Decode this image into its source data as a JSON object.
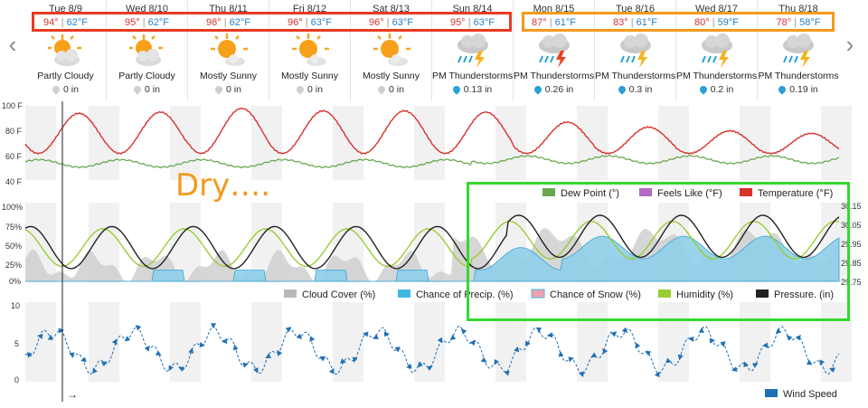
{
  "days": [
    {
      "date": "Tue 8/9",
      "hi": "94°",
      "lo": "62°F",
      "condition": "Partly Cloudy",
      "icon": "partly-cloudy-icon",
      "precip": "0 in",
      "wet": false
    },
    {
      "date": "Wed 8/10",
      "hi": "95°",
      "lo": "62°F",
      "condition": "Partly Cloudy",
      "icon": "partly-cloudy-icon",
      "precip": "0 in",
      "wet": false
    },
    {
      "date": "Thu 8/11",
      "hi": "98°",
      "lo": "62°F",
      "condition": "Mostly Sunny",
      "icon": "mostly-sunny-icon",
      "precip": "0 in",
      "wet": false
    },
    {
      "date": "Fri 8/12",
      "hi": "96°",
      "lo": "63°F",
      "condition": "Mostly Sunny",
      "icon": "mostly-sunny-icon",
      "precip": "0 in",
      "wet": false
    },
    {
      "date": "Sat 8/13",
      "hi": "96°",
      "lo": "63°F",
      "condition": "Mostly Sunny",
      "icon": "mostly-sunny-icon",
      "precip": "0 in",
      "wet": false
    },
    {
      "date": "Sun 8/14",
      "hi": "95°",
      "lo": "63°F",
      "condition": "PM Thunderstorms",
      "icon": "thunderstorm-icon",
      "precip": "0.13 in",
      "wet": true
    },
    {
      "date": "Mon 8/15",
      "hi": "87°",
      "lo": "61°F",
      "condition": "PM Thunderstorms",
      "icon": "thunderstorm-icon",
      "precip": "0.26 in",
      "wet": true
    },
    {
      "date": "Tue 8/16",
      "hi": "83°",
      "lo": "61°F",
      "condition": "PM Thunderstorms",
      "icon": "thunderstorm-icon",
      "precip": "0.3 in",
      "wet": true
    },
    {
      "date": "Wed 8/17",
      "hi": "80°",
      "lo": "59°F",
      "condition": "PM Thunderstorms",
      "icon": "thunderstorm-icon",
      "precip": "0.2 in",
      "wet": true
    },
    {
      "date": "Thu 8/18",
      "hi": "78°",
      "lo": "58°F",
      "condition": "PM Thunderstorms",
      "icon": "thunderstorm-icon",
      "precip": "0.19 in",
      "wet": true
    }
  ],
  "separator": "|",
  "nav": {
    "prev": "‹",
    "next": "›"
  },
  "annotation": "Dry….",
  "colors": {
    "temperature": "#d8322c",
    "feels_like": "#b36bc4",
    "dew_point": "#6aa84f",
    "humidity": "#9acd32",
    "pressure": "#222222",
    "cloud_cover": "#c8c8c8",
    "precip_chance": "#5bc0de",
    "snow": "#f0a0b0",
    "wind": "#1f6fb5"
  },
  "temp_chart": {
    "yticks": [
      "100 F",
      "80 F",
      "60 F",
      "40 F"
    ],
    "legend": [
      {
        "label": "Dew Point (°)",
        "color": "#6aa84f"
      },
      {
        "label": "Feels Like (°F)",
        "color": "#b36bc4"
      },
      {
        "label": "Temperature (°F)",
        "color": "#d8322c"
      }
    ]
  },
  "pct_chart": {
    "yticks": [
      "100%",
      "75%",
      "50%",
      "25%",
      "0%"
    ],
    "rticks": [
      "30.15",
      "30.05",
      "29.95",
      "29.85",
      "29.75"
    ],
    "legend": [
      {
        "label": "Cloud Cover (%)",
        "color": "#b8b8b8"
      },
      {
        "label": "Chance of Precip. (%)",
        "color": "#3fb8e0"
      },
      {
        "label": "Chance of Snow (%)",
        "color": "#f0a0b0"
      },
      {
        "label": "Humidity (%)",
        "color": "#9acd32"
      },
      {
        "label": "Pressure. (in)",
        "color": "#222222"
      }
    ]
  },
  "wind_chart": {
    "yticks": [
      "10",
      "5",
      "0"
    ],
    "legend": [
      {
        "label": "Wind Speed",
        "color": "#1f6fb5"
      }
    ],
    "cursor_arrow": "→"
  }
}
